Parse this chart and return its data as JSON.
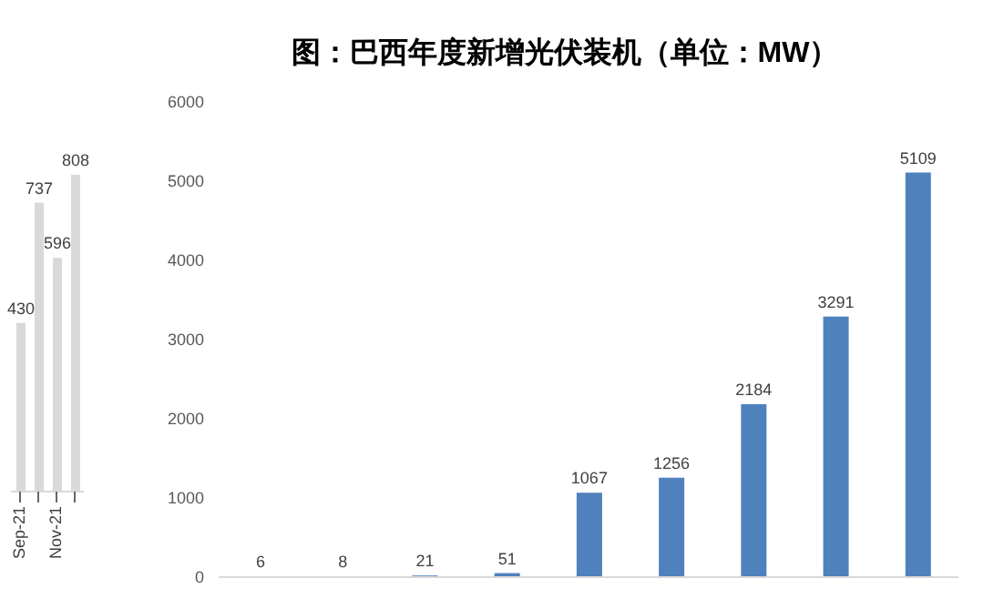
{
  "chart_data": [
    {
      "type": "bar",
      "categories": [
        "Sep-21",
        null,
        "Nov-21",
        null
      ],
      "values": [
        430,
        737,
        596,
        808
      ],
      "color": "#d9d9d9",
      "data_labels": true
    },
    {
      "type": "bar",
      "title": "图：巴西年度新增光伏装机（单位：MW）",
      "categories": [
        null,
        null,
        null,
        null,
        null,
        null,
        null,
        null,
        null
      ],
      "values": [
        6,
        8,
        21,
        51,
        1067,
        1256,
        2184,
        3291,
        5109
      ],
      "color": "#4f81bd",
      "ylim": [
        0,
        6000
      ],
      "yticks": [
        0,
        1000,
        2000,
        3000,
        4000,
        5000,
        6000
      ],
      "grid": false,
      "data_labels": true
    }
  ]
}
